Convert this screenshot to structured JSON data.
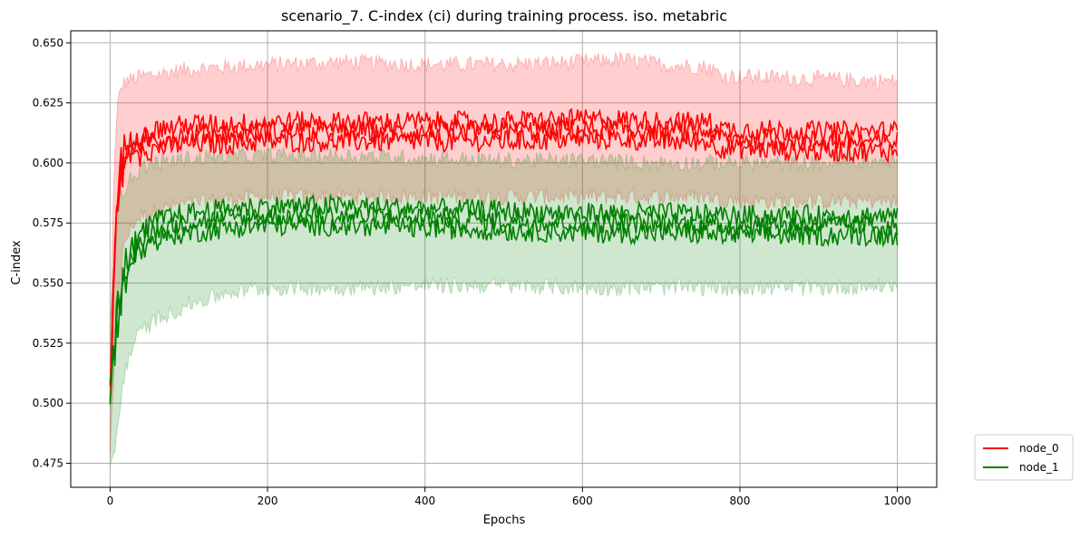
{
  "chart_data": {
    "type": "line",
    "title": "scenario_7. C-index (ci) during training process. iso. metabric",
    "xlabel": "Epochs",
    "ylabel": "C-index",
    "xlim": [
      -50,
      1050
    ],
    "ylim": [
      0.465,
      0.655
    ],
    "xticks": [
      0,
      200,
      400,
      600,
      800,
      1000
    ],
    "xtick_labels": [
      "0",
      "200",
      "400",
      "600",
      "800",
      "1000"
    ],
    "yticks": [
      0.475,
      0.5,
      0.525,
      0.55,
      0.575,
      0.6,
      0.625,
      0.65
    ],
    "ytick_labels": [
      "0.475",
      "0.500",
      "0.525",
      "0.550",
      "0.575",
      "0.600",
      "0.625",
      "0.650"
    ],
    "grid": true,
    "legend_position": "outside-bottom-right",
    "series": [
      {
        "name": "node_0",
        "color": "#ff0000",
        "band_color": "#ff0000",
        "x": [
          0,
          5,
          10,
          15,
          20,
          30,
          40,
          60,
          80,
          100,
          150,
          200,
          300,
          400,
          500,
          600,
          650,
          700,
          760,
          780,
          800,
          900,
          1000
        ],
        "mean": [
          0.505,
          0.555,
          0.59,
          0.6,
          0.603,
          0.606,
          0.608,
          0.61,
          0.611,
          0.612,
          0.612,
          0.613,
          0.613,
          0.613,
          0.613,
          0.614,
          0.614,
          0.613,
          0.613,
          0.61,
          0.61,
          0.609,
          0.609
        ],
        "upper": [
          0.515,
          0.6,
          0.625,
          0.632,
          0.634,
          0.635,
          0.636,
          0.637,
          0.638,
          0.639,
          0.64,
          0.641,
          0.642,
          0.641,
          0.641,
          0.642,
          0.643,
          0.641,
          0.64,
          0.636,
          0.636,
          0.635,
          0.634
        ],
        "lower": [
          0.48,
          0.51,
          0.545,
          0.56,
          0.568,
          0.575,
          0.578,
          0.58,
          0.582,
          0.583,
          0.585,
          0.586,
          0.586,
          0.586,
          0.586,
          0.586,
          0.586,
          0.586,
          0.586,
          0.585,
          0.584,
          0.584,
          0.584
        ]
      },
      {
        "name": "node_1",
        "color": "#008000",
        "band_color": "#008000",
        "x": [
          0,
          5,
          10,
          15,
          20,
          30,
          40,
          60,
          80,
          100,
          150,
          200,
          300,
          400,
          500,
          600,
          700,
          800,
          900,
          1000
        ],
        "mean": [
          0.505,
          0.52,
          0.538,
          0.548,
          0.555,
          0.563,
          0.568,
          0.572,
          0.574,
          0.575,
          0.577,
          0.578,
          0.578,
          0.577,
          0.576,
          0.575,
          0.575,
          0.574,
          0.574,
          0.574
        ],
        "upper": [
          0.535,
          0.56,
          0.58,
          0.587,
          0.59,
          0.595,
          0.598,
          0.6,
          0.601,
          0.602,
          0.603,
          0.603,
          0.603,
          0.602,
          0.601,
          0.601,
          0.6,
          0.6,
          0.6,
          0.601
        ],
        "lower": [
          0.475,
          0.478,
          0.49,
          0.505,
          0.515,
          0.525,
          0.53,
          0.535,
          0.538,
          0.541,
          0.546,
          0.548,
          0.548,
          0.549,
          0.549,
          0.548,
          0.548,
          0.548,
          0.548,
          0.549
        ]
      }
    ]
  }
}
